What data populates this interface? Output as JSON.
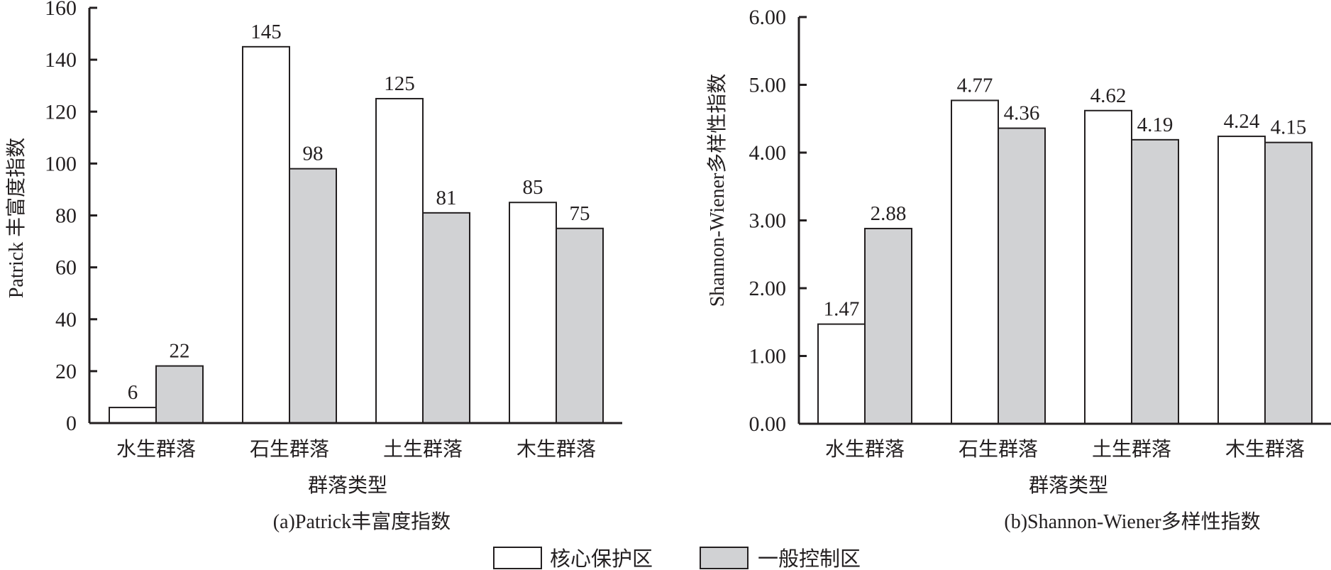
{
  "chart_data": [
    {
      "type": "bar",
      "title": "(a)Patrick丰富度指数",
      "xlabel": "群落类型",
      "ylabel": "Patrick 丰富度指数",
      "categories": [
        "水生群落",
        "石生群落",
        "土生群落",
        "木生群落"
      ],
      "ylim": [
        0,
        160
      ],
      "yticks": [
        "0",
        "20",
        "40",
        "60",
        "80",
        "100",
        "120",
        "140",
        "160"
      ],
      "ytick_values": [
        0,
        20,
        40,
        60,
        80,
        100,
        120,
        140,
        160
      ],
      "series": [
        {
          "name": "核心保护区",
          "values": [
            6,
            145,
            125,
            85
          ],
          "labels": [
            "6",
            "145",
            "125",
            "85"
          ]
        },
        {
          "name": "一般控制区",
          "values": [
            22,
            98,
            81,
            75
          ],
          "labels": [
            "22",
            "98",
            "81",
            "75"
          ]
        }
      ],
      "grid": false
    },
    {
      "type": "bar",
      "title": "(b)Shannon-Wiener多样性指数",
      "xlabel": "群落类型",
      "ylabel": "Shannon-Wiener多样性指数",
      "categories": [
        "水生群落",
        "石生群落",
        "土生群落",
        "木生群落"
      ],
      "ylim": [
        0,
        6
      ],
      "yticks": [
        "0.00",
        "1.00",
        "2.00",
        "3.00",
        "4.00",
        "5.00",
        "6.00"
      ],
      "ytick_values": [
        0,
        1,
        2,
        3,
        4,
        5,
        6
      ],
      "series": [
        {
          "name": "核心保护区",
          "values": [
            1.47,
            4.77,
            4.62,
            4.24
          ],
          "labels": [
            "1.47",
            "4.77",
            "4.62",
            "4.24"
          ]
        },
        {
          "name": "一般控制区",
          "values": [
            2.88,
            4.36,
            4.19,
            4.15
          ],
          "labels": [
            "2.88",
            "4.36",
            "4.19",
            "4.15"
          ]
        }
      ],
      "grid": false
    }
  ],
  "legend": {
    "placement": "bottom-center",
    "items": [
      {
        "label": "核心保护区",
        "color": "#ffffff"
      },
      {
        "label": "一般控制区",
        "color": "#d1d2d4"
      }
    ]
  },
  "colors": {
    "axis": "#231f20",
    "series": [
      "#ffffff",
      "#d1d2d4"
    ]
  }
}
